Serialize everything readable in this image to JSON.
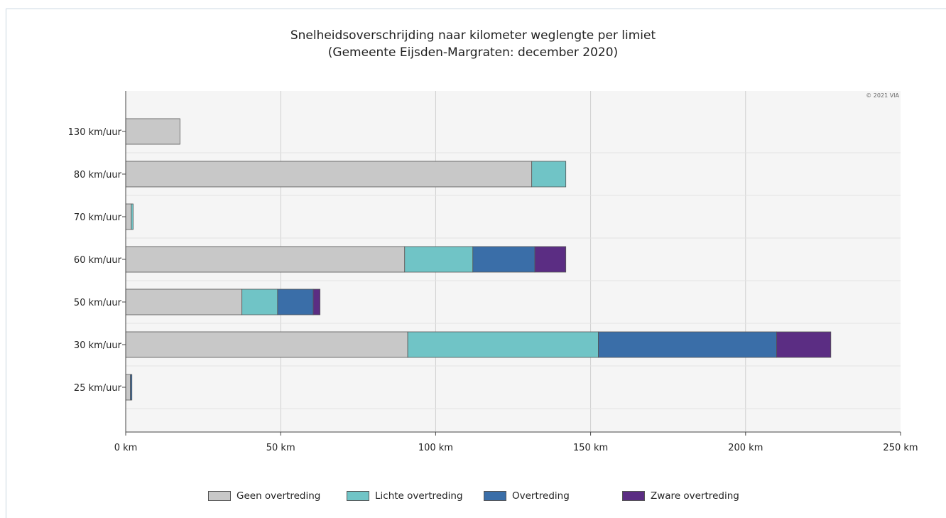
{
  "chart_data": {
    "type": "bar",
    "orientation": "horizontal",
    "stacked": true,
    "title": "Snelheidsoverschrijding naar kilometer weglengte per limiet",
    "subtitle": "(Gemeente Eijsden-Margraten: december 2020)",
    "credit": "© 2021 VIA",
    "categories": [
      "130 km/uur",
      "80 km/uur",
      "70 km/uur",
      "60 km/uur",
      "50 km/uur",
      "30 km/uur",
      "25 km/uur"
    ],
    "series": [
      {
        "name": "Geen overtreding",
        "color": "#c8c8c8",
        "values": [
          17.5,
          131,
          1.8,
          90,
          37.5,
          91,
          1.5
        ]
      },
      {
        "name": "Lichte overtreding",
        "color": "#70c4c6",
        "values": [
          0,
          11,
          0.6,
          22,
          11.5,
          61.5,
          0
        ]
      },
      {
        "name": "Overtreding",
        "color": "#3a6ea8",
        "values": [
          0,
          0,
          0,
          20,
          11.5,
          57.5,
          0.5
        ]
      },
      {
        "name": "Zware overtreding",
        "color": "#5b2d83",
        "values": [
          0,
          0,
          0,
          10,
          2.2,
          17.5,
          0
        ]
      }
    ],
    "xlim": [
      0,
      250
    ],
    "xticks": [
      0,
      50,
      100,
      150,
      200,
      250
    ],
    "xtick_labels": [
      "0 km",
      "50 km",
      "100 km",
      "150 km",
      "200 km",
      "250 km"
    ],
    "grid": true,
    "legend_position": "bottom"
  }
}
